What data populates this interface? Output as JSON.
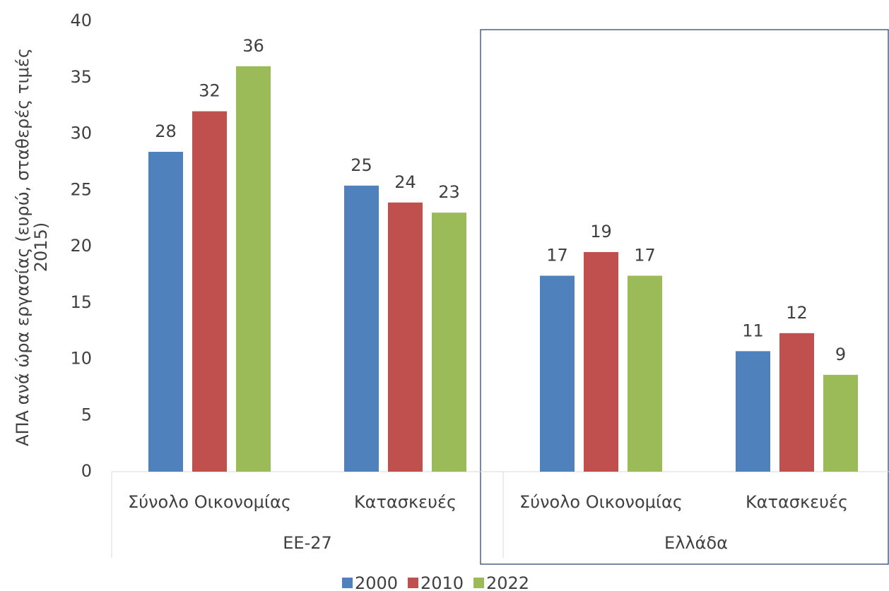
{
  "chart_data": {
    "type": "bar",
    "y_label": "ΑΠΑ ανά ώρα εργασίας (ευρώ, σταθερές τιμές 2015)",
    "categories": [
      "Σύνολο Οικονομίας",
      "Κατασκευές",
      "Σύνολο Οικονομίας",
      "Κατασκευές"
    ],
    "groups": [
      "ΕΕ-27",
      "Ελλάδα"
    ],
    "series": [
      {
        "name": "2000",
        "color": "#4f81bd",
        "values": [
          28.4,
          25.4,
          17.4,
          10.7
        ],
        "value_labels": [
          "28",
          "25",
          "17",
          "11"
        ]
      },
      {
        "name": "2010",
        "color": "#c0504d",
        "values": [
          32.0,
          23.9,
          19.5,
          12.3
        ],
        "value_labels": [
          "32",
          "24",
          "19",
          "12"
        ]
      },
      {
        "name": "2022",
        "color": "#9bbb59",
        "values": [
          36.0,
          23.0,
          17.4,
          8.6
        ],
        "value_labels": [
          "36",
          "23",
          "17",
          "9"
        ]
      }
    ],
    "ylim": [
      0,
      40
    ],
    "yticks": [
      0,
      5,
      10,
      15,
      20,
      25,
      30,
      35,
      40
    ],
    "grid": false,
    "legend": "bottom"
  }
}
